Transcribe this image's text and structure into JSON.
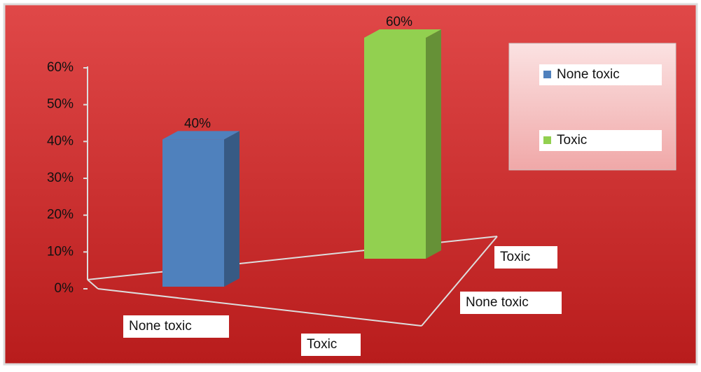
{
  "chart_data": {
    "type": "bar3d",
    "categories": [
      "None toxic",
      "Toxic"
    ],
    "series": [
      {
        "name": "None toxic",
        "color": "#4f81bd",
        "values": [
          40,
          null
        ],
        "value_labels": [
          "40%",
          null
        ]
      },
      {
        "name": "Toxic",
        "color": "#92d050",
        "values": [
          null,
          60
        ],
        "value_labels": [
          null,
          "60%"
        ]
      }
    ],
    "ylim": [
      0,
      60
    ],
    "yticks": [
      {
        "value": 0,
        "label": "0%"
      },
      {
        "value": 10,
        "label": "10%"
      },
      {
        "value": 20,
        "label": "20%"
      },
      {
        "value": 30,
        "label": "30%"
      },
      {
        "value": 40,
        "label": "40%"
      },
      {
        "value": 50,
        "label": "50%"
      },
      {
        "value": 60,
        "label": "60%"
      }
    ],
    "legend": "top-right"
  }
}
